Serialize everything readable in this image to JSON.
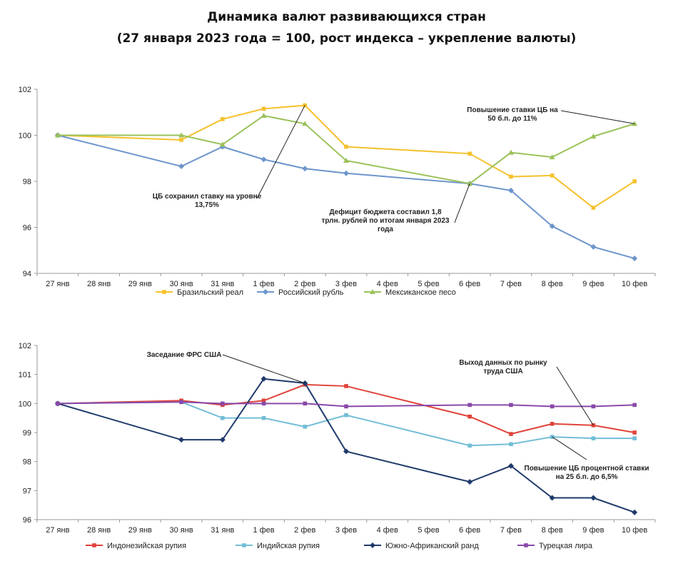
{
  "header": {
    "title": "Динамика валют развивающихся стран",
    "subtitle": "(27 января 2023 года = 100, рост индекса – укрепление валюты)"
  },
  "chart_data": [
    {
      "type": "line",
      "x": [
        "27 янв",
        "28 янв",
        "29 янв",
        "30 янв",
        "31 янв",
        "1 фев",
        "2 фев",
        "3 фев",
        "4 фев",
        "5 фев",
        "6 фев",
        "7 фев",
        "8 фев",
        "9 фев",
        "10 фев"
      ],
      "ylim": [
        94,
        102
      ],
      "yticks": [
        "94",
        "96",
        "98",
        "100",
        "102"
      ],
      "series": [
        {
          "name": "Бразильский реал",
          "color": "#f5c12c",
          "marker": "square",
          "values": [
            100,
            null,
            null,
            99.8,
            100.7,
            101.15,
            101.3,
            99.5,
            null,
            null,
            99.2,
            98.2,
            98.25,
            96.85,
            98.0
          ]
        },
        {
          "name": "Российский рубль",
          "color": "#6d95cc",
          "marker": "diamond",
          "values": [
            100,
            null,
            null,
            98.65,
            99.5,
            98.95,
            98.55,
            98.35,
            null,
            null,
            97.9,
            97.6,
            96.05,
            95.15,
            94.65
          ]
        },
        {
          "name": "Мексиканское песо",
          "color": "#9bc25a",
          "marker": "triangle",
          "values": [
            100,
            null,
            null,
            100.0,
            99.6,
            100.85,
            100.5,
            98.9,
            null,
            null,
            97.9,
            99.25,
            99.05,
            99.95,
            100.5
          ]
        }
      ],
      "annotations": [
        {
          "lines": [
            "ЦБ сохранил ставку на уровне",
            "13,75%"
          ],
          "target_x": "2 фев",
          "target_y": 101.3
        },
        {
          "lines": [
            "Дефицит бюджета составил 1,8",
            "трлн. рублей по итогам января 2023",
            "года"
          ],
          "target_x": "6 фев",
          "target_y": 97.9
        },
        {
          "lines": [
            "Повышение ставки ЦБ на",
            "50 б.п. до 11%"
          ],
          "target_x": "10 фев",
          "target_y": 100.5
        }
      ],
      "grid": false,
      "legend": "bottom"
    },
    {
      "type": "line",
      "x": [
        "27 янв",
        "28 янв",
        "29 янв",
        "30 янв",
        "31 янв",
        "1 фев",
        "2 фев",
        "3 фев",
        "4 фев",
        "5 фев",
        "6 фев",
        "7 фев",
        "8 фев",
        "9 фев",
        "10 фев"
      ],
      "ylim": [
        96,
        102
      ],
      "yticks": [
        "96",
        "97",
        "98",
        "99",
        "100",
        "101",
        "102"
      ],
      "series": [
        {
          "name": "Индонезийская рупия",
          "color": "#e0443b",
          "marker": "square",
          "values": [
            100,
            null,
            null,
            100.1,
            99.95,
            100.1,
            100.65,
            100.6,
            null,
            null,
            99.55,
            98.95,
            99.3,
            99.25,
            99.0
          ]
        },
        {
          "name": "Индийская рупия",
          "color": "#72bdd6",
          "marker": "square",
          "values": [
            100,
            null,
            null,
            100.05,
            99.5,
            99.5,
            99.2,
            99.6,
            null,
            null,
            98.55,
            98.6,
            98.85,
            98.8,
            98.8
          ]
        },
        {
          "name": "Южно-Африканский ранд",
          "color": "#1f3a6b",
          "marker": "diamond",
          "values": [
            100,
            null,
            null,
            98.75,
            98.75,
            100.85,
            100.7,
            98.35,
            null,
            null,
            97.3,
            97.85,
            96.75,
            96.75,
            96.25
          ]
        },
        {
          "name": "Турецкая лира",
          "color": "#8a49a9",
          "marker": "square",
          "values": [
            100,
            null,
            null,
            100.05,
            100.0,
            100.0,
            100.0,
            99.9,
            null,
            null,
            99.95,
            99.95,
            99.9,
            99.9,
            99.95
          ]
        }
      ],
      "annotations": [
        {
          "lines": [
            "Заседание ФРС США"
          ],
          "target_x": "2 фев",
          "target_y": 100.7
        },
        {
          "lines": [
            "Выход данных по рынку",
            "труда США"
          ],
          "target_x": "9 фев",
          "target_y": 99.25
        },
        {
          "lines": [
            "Повышение ЦБ процентной ставки",
            "на 25 б.п. до 6,5%"
          ],
          "target_x": "8 фев",
          "target_y": 98.85
        }
      ],
      "grid": false,
      "legend": "bottom"
    }
  ]
}
